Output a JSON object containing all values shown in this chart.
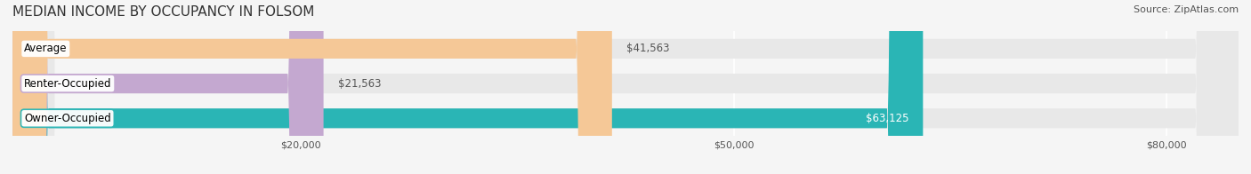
{
  "title": "MEDIAN INCOME BY OCCUPANCY IN FOLSOM",
  "source": "Source: ZipAtlas.com",
  "categories": [
    "Owner-Occupied",
    "Renter-Occupied",
    "Average"
  ],
  "values": [
    63125,
    21563,
    41563
  ],
  "bar_colors": [
    "#2ab5b5",
    "#c4a8d0",
    "#f5c897"
  ],
  "bar_edge_colors": [
    "#2ab5b5",
    "#c4a8d0",
    "#f5c897"
  ],
  "label_colors": [
    "white",
    "black",
    "black"
  ],
  "label_inside": [
    true,
    false,
    false
  ],
  "value_labels": [
    "$63,125",
    "$21,563",
    "$41,563"
  ],
  "xlim": [
    0,
    85000
  ],
  "xticks": [
    0,
    20000,
    50000,
    80000
  ],
  "xtick_labels": [
    "",
    "$20,000",
    "$50,000",
    "$80,000"
  ],
  "background_color": "#f5f5f5",
  "bar_background_color": "#e8e8e8",
  "title_fontsize": 11,
  "source_fontsize": 8,
  "label_fontsize": 8.5,
  "value_fontsize": 8.5,
  "bar_height": 0.55
}
